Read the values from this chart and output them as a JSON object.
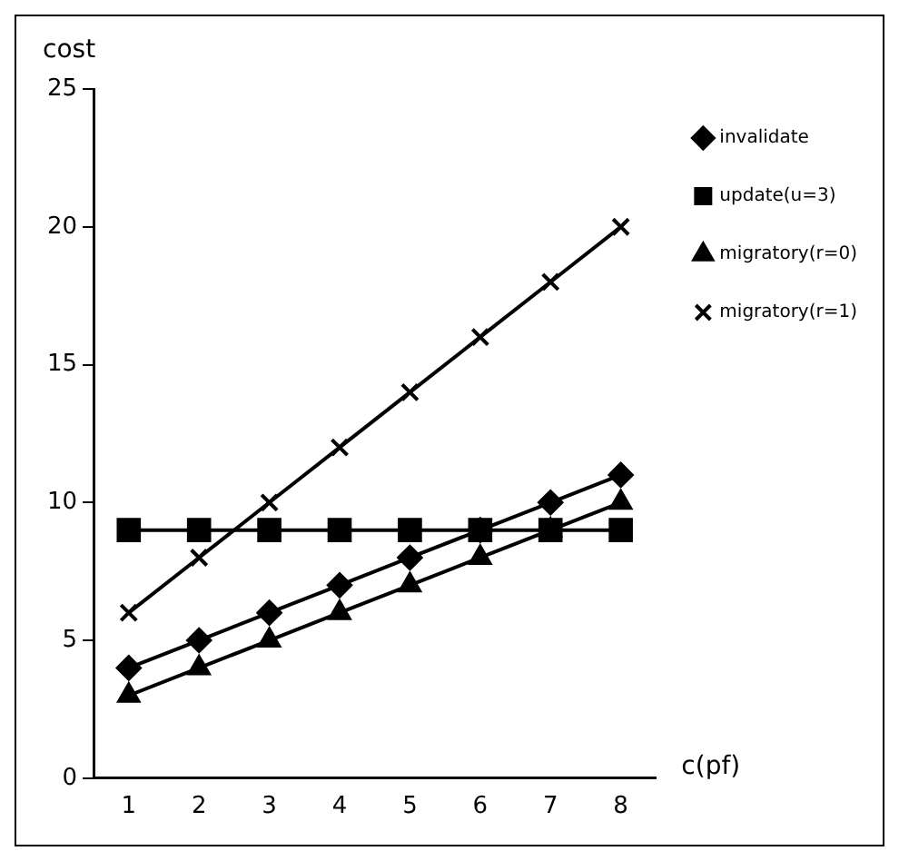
{
  "chart_data": {
    "type": "line",
    "xlabel": "c(pf)",
    "ylabel": "cost",
    "categories": [
      "1",
      "2",
      "3",
      "4",
      "5",
      "6",
      "7",
      "8"
    ],
    "series": [
      {
        "name": "invalidate",
        "color": "#000000",
        "marker": "diamond",
        "values": [
          4,
          5,
          6,
          7,
          8,
          9,
          10,
          11
        ]
      },
      {
        "name": "update(u=3)",
        "color": "#000000",
        "marker": "square",
        "values": [
          9,
          9,
          9,
          9,
          9,
          9,
          9,
          9
        ]
      },
      {
        "name": "migratory(r=0)",
        "color": "#000000",
        "marker": "triangle",
        "values": [
          3,
          4,
          5,
          6,
          7,
          8,
          9,
          10
        ]
      },
      {
        "name": "migratory(r=1)",
        "color": "#000000",
        "marker": "cross",
        "values": [
          6,
          8,
          10,
          12,
          14,
          16,
          18,
          20
        ]
      }
    ],
    "ylim": [
      0,
      25
    ],
    "yticks": [
      0,
      5,
      10,
      15,
      20,
      25
    ],
    "grid": false,
    "legend": "top right",
    "line_style": "solid"
  }
}
